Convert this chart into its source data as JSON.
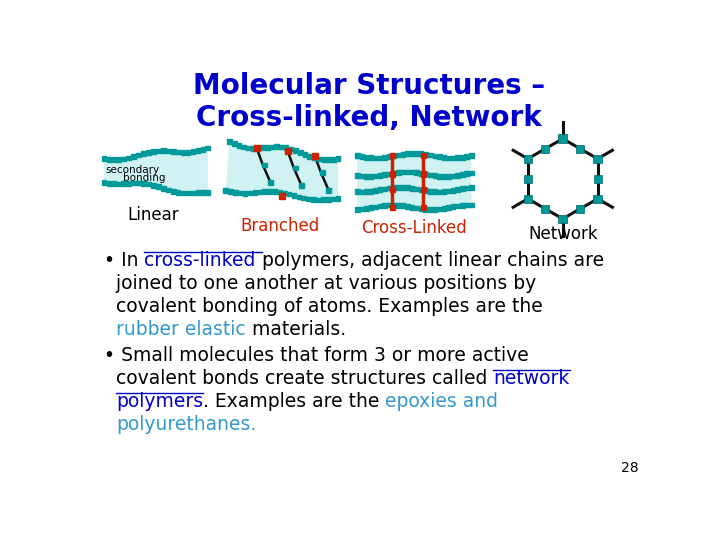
{
  "title": "Molecular Structures –\nCross-linked, Network",
  "title_color": "#0000cc",
  "title_fontsize": 20,
  "labels": [
    "Linear",
    "Branched",
    "Cross-Linked",
    "Network"
  ],
  "label_colors": [
    "black",
    "#cc2200",
    "#cc2200",
    "black"
  ],
  "label_fontsize": 12,
  "teal": "#009999",
  "light_teal": "#c8f0f0",
  "red_link": "#cc2200",
  "black": "#111111",
  "page_number": "28",
  "bg_color": "#ffffff",
  "text_blue": "#0000cc",
  "text_teal": "#3399cc",
  "bullet1_line1_black": "• In ",
  "bullet1_line1_blue": "cross-linked ",
  "bullet1_line1_rest": "polymers, adjacent linear chains are",
  "bullet1_line2": "joined to one another at various positions by",
  "bullet1_line3": "covalent bonding of atoms. Examples are the",
  "bullet1_line4_teal": "rubber elastic",
  "bullet1_line4_rest": " materials.",
  "bullet2_line1": "• Small molecules that form 3 or more active",
  "bullet2_line2_pre": "covalent bonds create structures called ",
  "bullet2_line2_blue": "network",
  "bullet2_line3_blue": "polymers",
  "bullet2_line3_rest": ". Examples are the ",
  "bullet2_line3_teal": "epoxies and",
  "bullet2_line4_teal": "polyurethanes.",
  "font_size_body": 13.5
}
